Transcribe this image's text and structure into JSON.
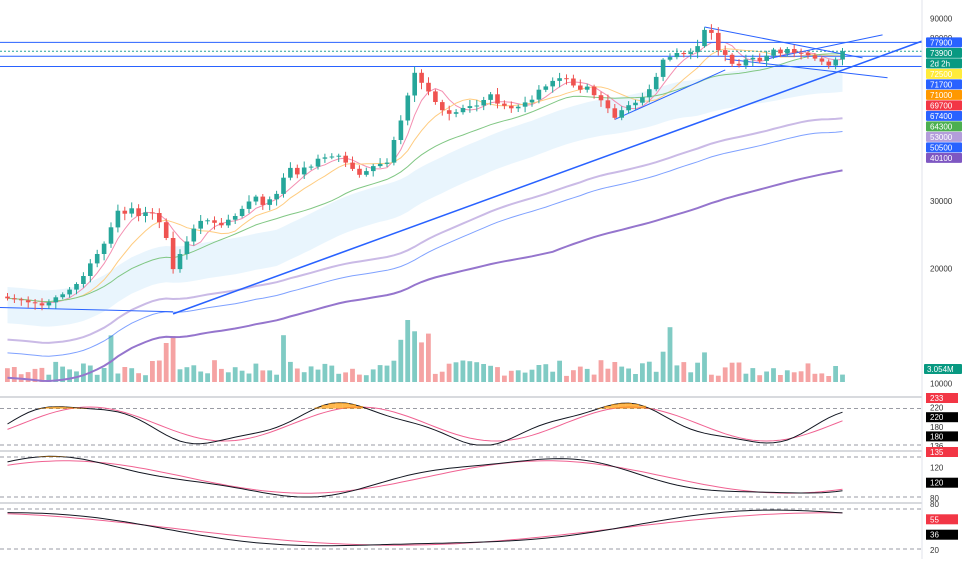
{
  "chart_data": {
    "type": "candlestick",
    "main_pane": {
      "y_scale": "log",
      "ylim": [
        9500,
        97000
      ],
      "y_ticks": [
        {
          "value": 90000,
          "label": "90000"
        },
        {
          "value": 80000,
          "label": "80000"
        },
        {
          "value": 30000,
          "label": "30000"
        },
        {
          "value": 20000,
          "label": "20000"
        },
        {
          "value": 10000,
          "label": "10000"
        }
      ],
      "price_badges": [
        {
          "value": 77900,
          "label": "77900",
          "color": "#2962ff"
        },
        {
          "value": 73900,
          "label": "73900",
          "color": "#089981"
        },
        {
          "value": 73900,
          "label": "2d 2h",
          "color": "#089981",
          "offset_rows": 1
        },
        {
          "value": 72500,
          "label": "72500",
          "color": "#ffeb3b",
          "text_color": "#000000"
        },
        {
          "value": 71700,
          "label": "71700",
          "color": "#2962ff"
        },
        {
          "value": 71000,
          "label": "71000",
          "color": "#ff9800"
        },
        {
          "value": 69700,
          "label": "69700",
          "color": "#f23645"
        },
        {
          "value": 67400,
          "label": "67400",
          "color": "#2962ff"
        },
        {
          "value": 64300,
          "label": "64300",
          "color": "#4caf50"
        },
        {
          "value": 53000,
          "label": "53000",
          "color": "#b39ddb"
        },
        {
          "value": 50500,
          "label": "50500",
          "color": "#2962ff"
        },
        {
          "value": 40100,
          "label": "40100",
          "color": "#7e57c2"
        }
      ],
      "volume_badge": {
        "label": "3.054M",
        "color": "#089981"
      },
      "horizontal_lines": [
        77900,
        73900,
        71700,
        67400
      ],
      "candle_count": 122,
      "candles_close_approx": [
        16700,
        16600,
        16500,
        16300,
        16200,
        16000,
        16300,
        16800,
        17100,
        17600,
        18200,
        19100,
        20600,
        21800,
        23200,
        25600,
        28300,
        27800,
        28700,
        27400,
        28000,
        27900,
        26400,
        24000,
        19900,
        21800,
        23500,
        25400,
        26600,
        26700,
        26300,
        25900,
        26800,
        27400,
        28600,
        29900,
        30800,
        29300,
        30300,
        31300,
        34500,
        36600,
        35200,
        36700,
        36900,
        38700,
        39000,
        39200,
        39400,
        37800,
        36400,
        35100,
        35900,
        37000,
        37500,
        37800,
        43300,
        48700,
        56600,
        64900,
        61100,
        58000,
        54400,
        51800,
        50700,
        51200,
        52500,
        53100,
        53300,
        55100,
        57000,
        53900,
        53200,
        52400,
        52900,
        54300,
        55200,
        58600,
        59800,
        61800,
        62800,
        62700,
        60100,
        58600,
        59700,
        56700,
        55000,
        52400,
        49500,
        51800,
        53400,
        54200,
        56000,
        58800,
        63300,
        70200,
        71300,
        73100,
        72600,
        73500,
        76200,
        84000,
        82500,
        74400,
        72300,
        68500,
        67800,
        70300,
        71000,
        69700,
        71900,
        74600,
        72900,
        74900,
        73200,
        73100,
        72100,
        70700,
        69400,
        67800,
        70300,
        73900
      ]
    },
    "oscillator_panes": [
      {
        "name": "",
        "axis_labels": [
          {
            "value": 233,
            "label": "233",
            "color": "#f23645"
          },
          {
            "value": 220,
            "label": "220"
          },
          {
            "value": 220,
            "label": "220",
            "color": "#000000"
          },
          {
            "value": 180,
            "label": "180"
          },
          {
            "value": 180,
            "label": "180",
            "color": "#000000"
          },
          {
            "value": 136,
            "label": "136"
          }
        ],
        "overbought": 220,
        "oversold": 136
      },
      {
        "name": "",
        "axis_labels": [
          {
            "value": 135,
            "label": "135",
            "color": "#f23645"
          },
          {
            "value": 120,
            "label": "120"
          },
          {
            "value": 120,
            "label": "120",
            "color": "#000000"
          },
          {
            "value": 80,
            "label": "80"
          }
        ],
        "overbought": 135,
        "oversold": 80
      },
      {
        "name": "",
        "axis_labels": [
          {
            "value": 80,
            "label": "80"
          },
          {
            "value": 55,
            "label": "55",
            "color": "#f23645"
          },
          {
            "value": 36,
            "label": "36",
            "color": "#000000"
          },
          {
            "value": 20,
            "label": "20"
          }
        ],
        "overbought": 80,
        "oversold": 20
      }
    ],
    "colors": {
      "up": "#26a69a",
      "down": "#ef5350",
      "trendline": "#2962ff",
      "ma_short": "#f48fb1",
      "ma_mid": "#ffcc80",
      "ma_long": "#81c784",
      "ma_200": "#9575cd",
      "ma_400": "#b39ddb",
      "band_fill": "#e3f2fd"
    },
    "grid": false,
    "legend": "none"
  }
}
